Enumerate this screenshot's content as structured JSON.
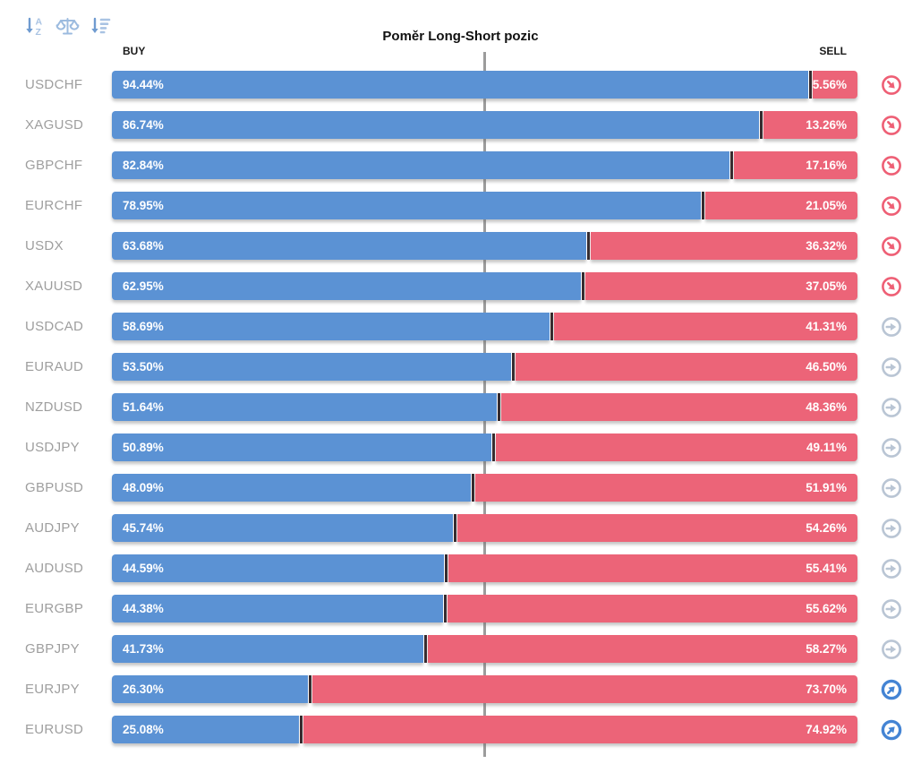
{
  "title": "Poměr Long-Short pozic",
  "header": {
    "buy_label": "BUY",
    "sell_label": "SELL"
  },
  "toolbar": {
    "icons": [
      {
        "name": "sort-alphabetical-icon"
      },
      {
        "name": "balance-scale-icon"
      },
      {
        "name": "sort-by-value-icon"
      }
    ]
  },
  "colors": {
    "buy_bar": "#5b92d4",
    "sell_bar": "#ec6478",
    "bar_divider": "#362b2f",
    "symbol_label": "#9e9e9e",
    "center_line": "#9c9c9c",
    "trend_down_icon": "#ee5f75",
    "trend_flat_icon": "#b9c5d4",
    "trend_up_icon": "#4484d4"
  },
  "chart_data": {
    "type": "bar",
    "orientation": "horizontal",
    "stacked": true,
    "title": "Poměr Long-Short pozic",
    "xlim": [
      0,
      100
    ],
    "center_line_at": 50,
    "legend": [
      "BUY",
      "SELL"
    ],
    "categories": [
      "USDCHF",
      "XAGUSD",
      "GBPCHF",
      "EURCHF",
      "USDX",
      "XAUUSD",
      "USDCAD",
      "EURAUD",
      "NZDUSD",
      "USDJPY",
      "GBPUSD",
      "AUDJPY",
      "AUDUSD",
      "EURGBP",
      "GBPJPY",
      "EURJPY",
      "EURUSD"
    ],
    "series": [
      {
        "name": "BUY",
        "color": "#5b92d4",
        "values": [
          94.44,
          86.74,
          82.84,
          78.95,
          63.68,
          62.95,
          58.69,
          53.5,
          51.64,
          50.89,
          48.09,
          45.74,
          44.59,
          44.38,
          41.73,
          26.3,
          25.08
        ]
      },
      {
        "name": "SELL",
        "color": "#ec6478",
        "values": [
          5.56,
          13.26,
          17.16,
          21.05,
          36.32,
          37.05,
          41.31,
          46.5,
          48.36,
          49.11,
          51.91,
          54.26,
          55.41,
          55.62,
          58.27,
          73.7,
          74.92
        ]
      }
    ],
    "rows": [
      {
        "symbol": "USDCHF",
        "buy": 94.44,
        "sell": 5.56,
        "buy_label": "94.44%",
        "sell_label": "5.56%",
        "trend": "down"
      },
      {
        "symbol": "XAGUSD",
        "buy": 86.74,
        "sell": 13.26,
        "buy_label": "86.74%",
        "sell_label": "13.26%",
        "trend": "down"
      },
      {
        "symbol": "GBPCHF",
        "buy": 82.84,
        "sell": 17.16,
        "buy_label": "82.84%",
        "sell_label": "17.16%",
        "trend": "down"
      },
      {
        "symbol": "EURCHF",
        "buy": 78.95,
        "sell": 21.05,
        "buy_label": "78.95%",
        "sell_label": "21.05%",
        "trend": "down"
      },
      {
        "symbol": "USDX",
        "buy": 63.68,
        "sell": 36.32,
        "buy_label": "63.68%",
        "sell_label": "36.32%",
        "trend": "down"
      },
      {
        "symbol": "XAUUSD",
        "buy": 62.95,
        "sell": 37.05,
        "buy_label": "62.95%",
        "sell_label": "37.05%",
        "trend": "down"
      },
      {
        "symbol": "USDCAD",
        "buy": 58.69,
        "sell": 41.31,
        "buy_label": "58.69%",
        "sell_label": "41.31%",
        "trend": "flat"
      },
      {
        "symbol": "EURAUD",
        "buy": 53.5,
        "sell": 46.5,
        "buy_label": "53.50%",
        "sell_label": "46.50%",
        "trend": "flat"
      },
      {
        "symbol": "NZDUSD",
        "buy": 51.64,
        "sell": 48.36,
        "buy_label": "51.64%",
        "sell_label": "48.36%",
        "trend": "flat"
      },
      {
        "symbol": "USDJPY",
        "buy": 50.89,
        "sell": 49.11,
        "buy_label": "50.89%",
        "sell_label": "49.11%",
        "trend": "flat"
      },
      {
        "symbol": "GBPUSD",
        "buy": 48.09,
        "sell": 51.91,
        "buy_label": "48.09%",
        "sell_label": "51.91%",
        "trend": "flat"
      },
      {
        "symbol": "AUDJPY",
        "buy": 45.74,
        "sell": 54.26,
        "buy_label": "45.74%",
        "sell_label": "54.26%",
        "trend": "flat"
      },
      {
        "symbol": "AUDUSD",
        "buy": 44.59,
        "sell": 55.41,
        "buy_label": "44.59%",
        "sell_label": "55.41%",
        "trend": "flat"
      },
      {
        "symbol": "EURGBP",
        "buy": 44.38,
        "sell": 55.62,
        "buy_label": "44.38%",
        "sell_label": "55.62%",
        "trend": "flat"
      },
      {
        "symbol": "GBPJPY",
        "buy": 41.73,
        "sell": 58.27,
        "buy_label": "41.73%",
        "sell_label": "58.27%",
        "trend": "flat"
      },
      {
        "symbol": "EURJPY",
        "buy": 26.3,
        "sell": 73.7,
        "buy_label": "26.30%",
        "sell_label": "73.70%",
        "trend": "up"
      },
      {
        "symbol": "EURUSD",
        "buy": 25.08,
        "sell": 74.92,
        "buy_label": "25.08%",
        "sell_label": "74.92%",
        "trend": "up"
      }
    ]
  }
}
